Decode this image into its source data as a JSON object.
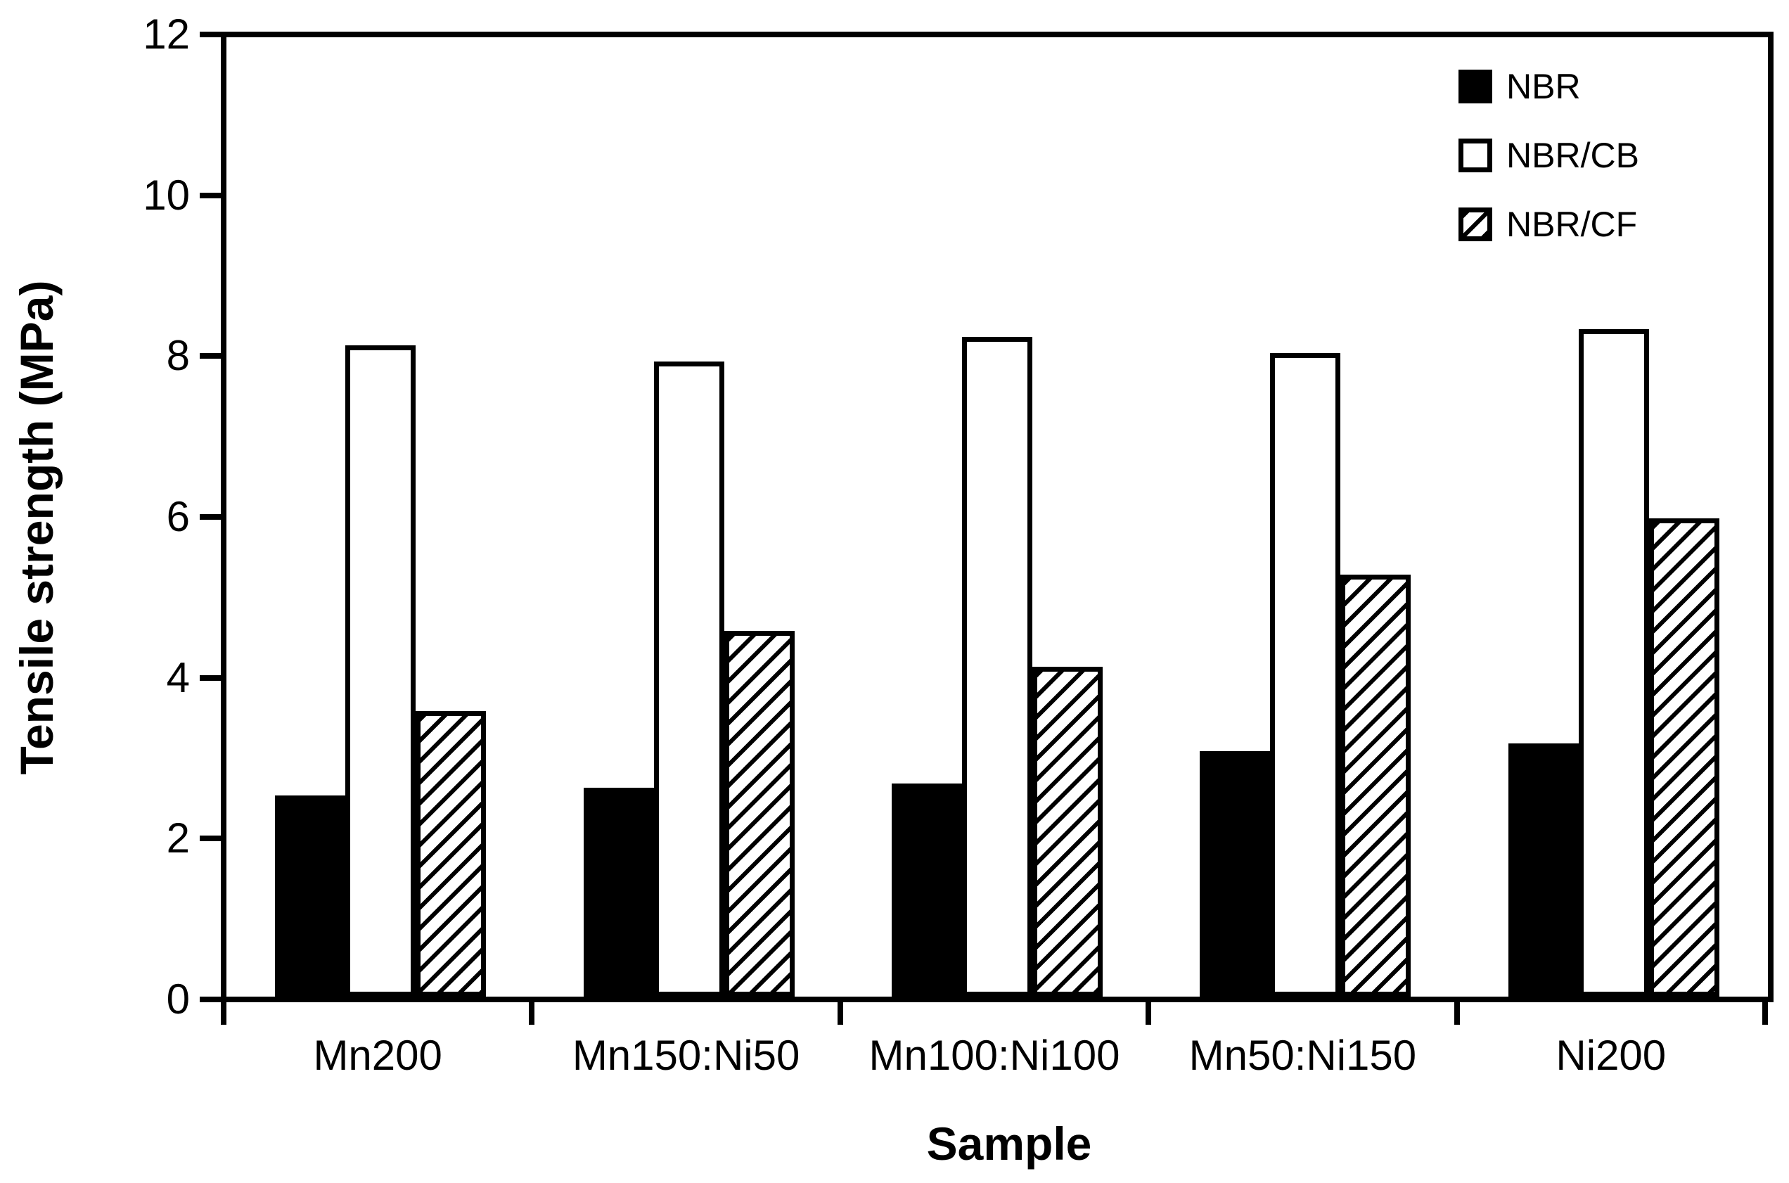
{
  "chart_data": {
    "type": "bar",
    "title": "",
    "xlabel": "Sample",
    "ylabel": "Tensile strength (MPa)",
    "ylim": [
      0,
      12
    ],
    "yticks": [
      0,
      2,
      4,
      6,
      8,
      10,
      12
    ],
    "grid": false,
    "legend_position": "top-right-inside",
    "categories": [
      "Mn200",
      "Mn150:Ni50",
      "Mn100:Ni100",
      "Mn50:Ni150",
      "Ni200"
    ],
    "series": [
      {
        "name": "NBR",
        "fill": "black",
        "values": [
          2.5,
          2.6,
          2.65,
          3.05,
          3.15
        ]
      },
      {
        "name": "NBR/CB",
        "fill": "white",
        "values": [
          8.1,
          7.9,
          8.2,
          8.0,
          8.3
        ]
      },
      {
        "name": "NBR/CF",
        "fill": "hatch",
        "values": [
          3.55,
          4.55,
          4.1,
          5.25,
          5.95
        ]
      }
    ],
    "colors": {
      "ink": "#000000",
      "background": "#ffffff"
    }
  }
}
